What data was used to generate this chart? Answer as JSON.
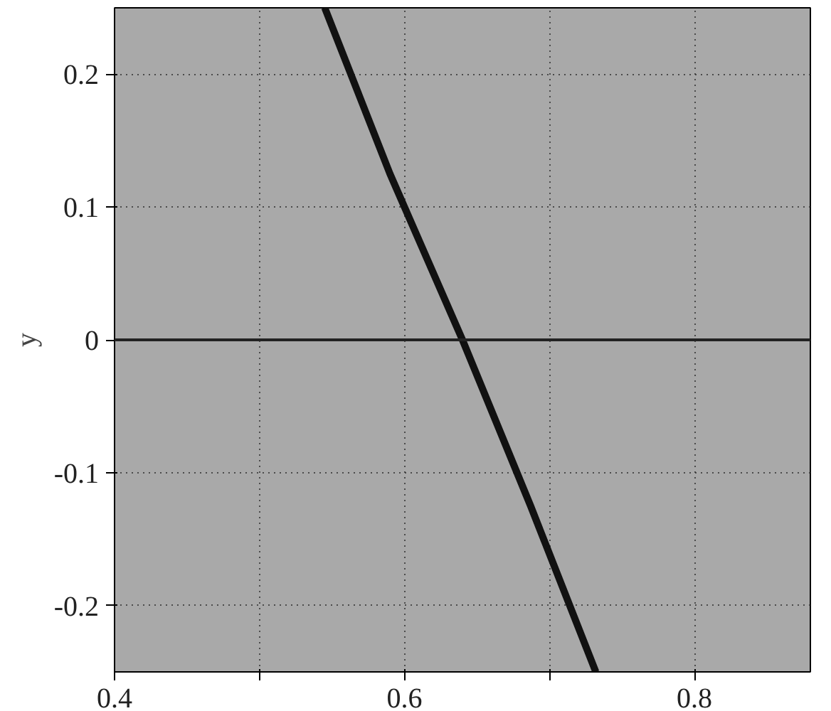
{
  "chart_data": {
    "type": "line",
    "ylabel": "y",
    "x": [
      0.545,
      0.59,
      0.64,
      0.687,
      0.732
    ],
    "series": [
      {
        "color": "#111111",
        "values": [
          0.25,
          0.125,
          0,
          -0.125,
          -0.25
        ]
      }
    ],
    "xlim": [
      0.4,
      0.88
    ],
    "ylim": [
      -0.25,
      0.25
    ],
    "xticks": [
      0.4,
      {
        "value": 0.5,
        "label": null
      },
      0.6,
      {
        "value": 0.7,
        "label": null
      },
      0.8
    ],
    "yticks": [
      -0.2,
      -0.1,
      0,
      0.1,
      0.2
    ],
    "ref_lines": [
      {
        "axis": "y",
        "value": 0,
        "color": "#222222",
        "line_style": "solid"
      }
    ],
    "grid": true,
    "line_style": "solid",
    "marker": "none"
  }
}
